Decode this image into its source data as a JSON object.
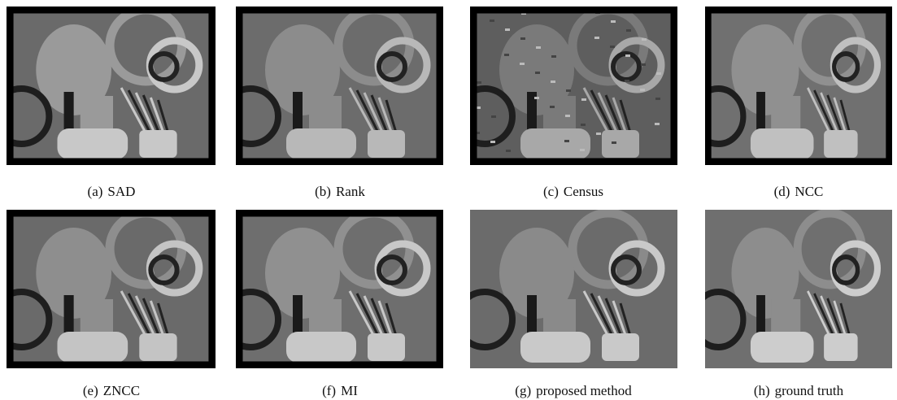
{
  "figures": [
    {
      "label": "(a)",
      "caption": "SAD"
    },
    {
      "label": "(b)",
      "caption": "Rank"
    },
    {
      "label": "(c)",
      "caption": "Census"
    },
    {
      "label": "(d)",
      "caption": "NCC"
    },
    {
      "label": "(e)",
      "caption": "ZNCC"
    },
    {
      "label": "(f)",
      "caption": "MI"
    },
    {
      "label": "(g)",
      "caption": "proposed method"
    },
    {
      "label": "(h)",
      "caption": "ground truth"
    }
  ]
}
